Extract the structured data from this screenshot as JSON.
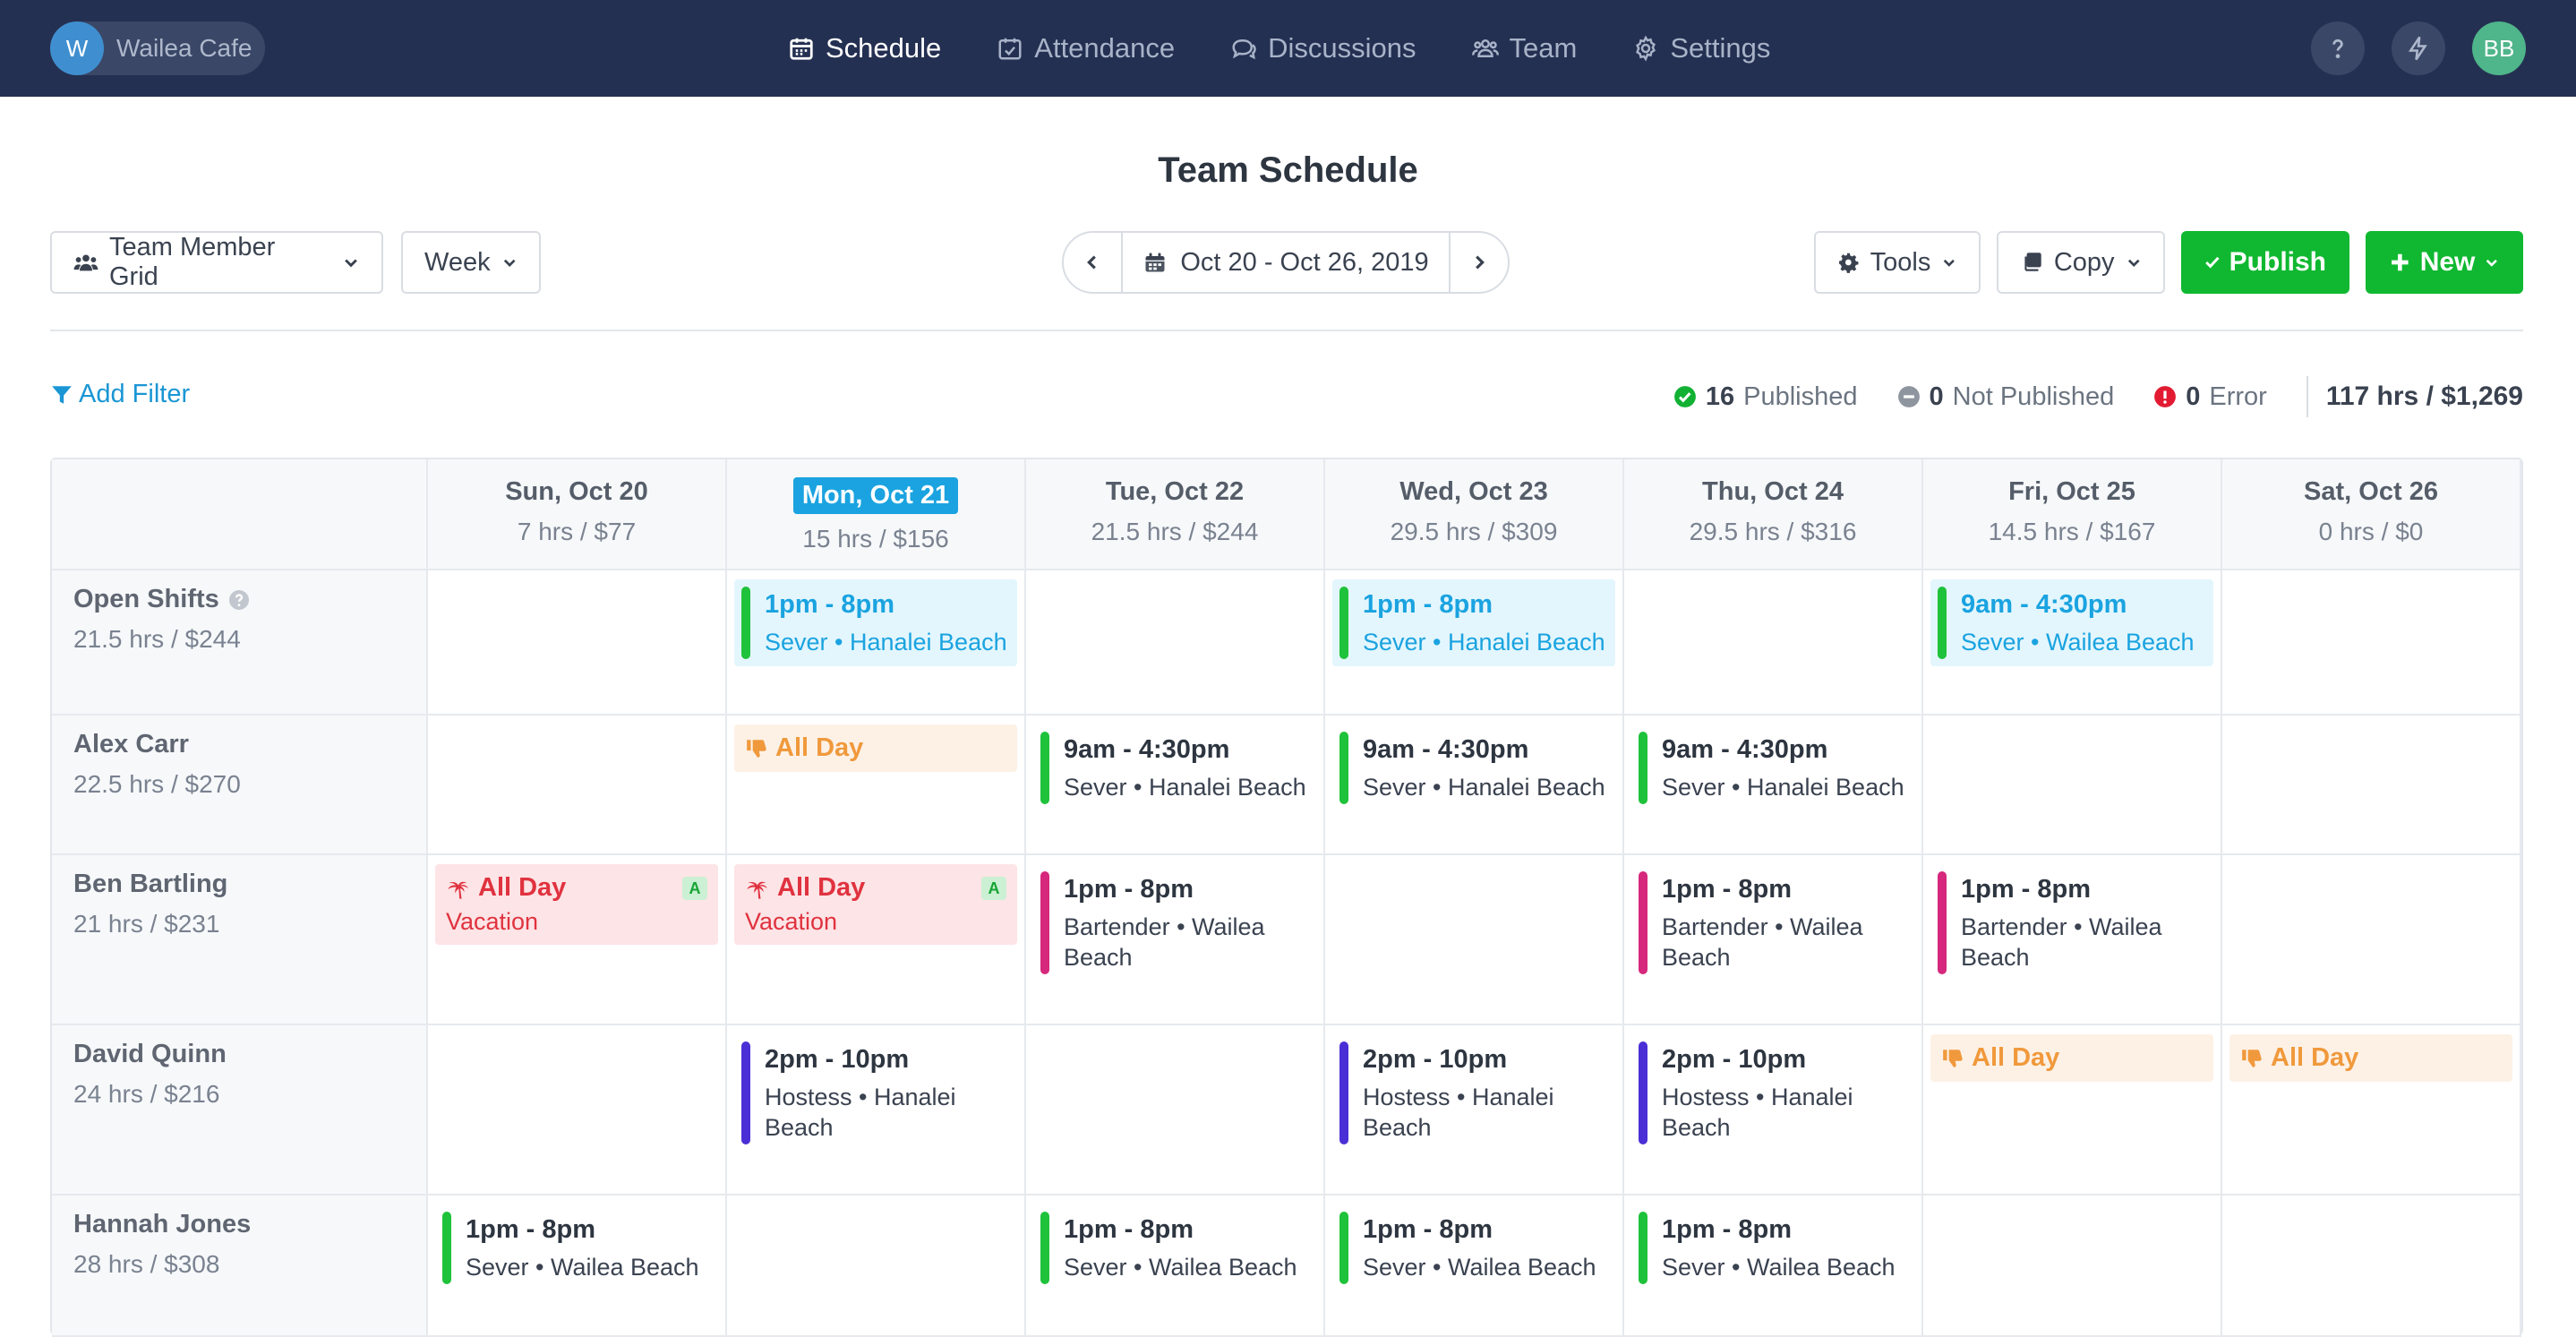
{
  "workspace": {
    "initial": "W",
    "name": "Wailea Cafe"
  },
  "nav": {
    "schedule": "Schedule",
    "attendance": "Attendance",
    "discussions": "Discussions",
    "team": "Team",
    "settings": "Settings"
  },
  "user": {
    "initials": "BB"
  },
  "page": {
    "title": "Team Schedule"
  },
  "toolbar": {
    "view": "Team Member Grid",
    "period": "Week",
    "date_range": "Oct 20 - Oct 26, 2019",
    "tools": "Tools",
    "copy": "Copy",
    "publish": "Publish",
    "new": "New"
  },
  "filter": {
    "add_filter": "Add Filter"
  },
  "status": {
    "published_count": "16",
    "published_label": "Published",
    "not_published_count": "0",
    "not_published_label": "Not Published",
    "error_count": "0",
    "error_label": "Error",
    "totals": "117 hrs / $1,269"
  },
  "colors": {
    "navbar": "#243052",
    "accent_blue": "#1aa3e0",
    "publish_green": "#0fb830",
    "server_shift": "#1fc23b",
    "bartender_shift": "#d6287c",
    "hostess_shift": "#4b2fd6",
    "unavailable": "#f0993c",
    "vacation": "#e0323f"
  },
  "days": [
    {
      "label": "Sun, Oct 20",
      "summary": "7 hrs / $77"
    },
    {
      "label": "Mon, Oct 21",
      "summary": "15 hrs / $156",
      "today": true
    },
    {
      "label": "Tue, Oct 22",
      "summary": "21.5 hrs / $244"
    },
    {
      "label": "Wed, Oct 23",
      "summary": "29.5 hrs / $309"
    },
    {
      "label": "Thu, Oct 24",
      "summary": "29.5 hrs / $316"
    },
    {
      "label": "Fri, Oct 25",
      "summary": "14.5 hrs / $167"
    },
    {
      "label": "Sat, Oct 26",
      "summary": "0 hrs / $0"
    }
  ],
  "rows": [
    {
      "name": "Open Shifts",
      "summary": "21.5 hrs / $244",
      "help_icon": "question-circle-icon"
    },
    {
      "name": "Alex Carr",
      "summary": "22.5 hrs / $270"
    },
    {
      "name": "Ben Bartling",
      "summary": "21 hrs / $231"
    },
    {
      "name": "David Quinn",
      "summary": "24 hrs / $216"
    },
    {
      "name": "Hannah Jones",
      "summary": "28 hrs / $308"
    }
  ],
  "shifts": {
    "open_mon": {
      "time": "1pm - 8pm",
      "role": "Sever • Hanalei Beach"
    },
    "open_wed": {
      "time": "1pm - 8pm",
      "role": "Sever • Hanalei Beach"
    },
    "open_fri": {
      "time": "9am - 4:30pm",
      "role": "Sever • Wailea Beach"
    },
    "alex_mon": {
      "label": "All Day"
    },
    "alex_tue": {
      "time": "9am - 4:30pm",
      "role": "Sever • Hanalei Beach"
    },
    "alex_wed": {
      "time": "9am - 4:30pm",
      "role": "Sever • Hanalei Beach"
    },
    "alex_thu": {
      "time": "9am - 4:30pm",
      "role": "Sever • Hanalei Beach"
    },
    "ben_sun": {
      "label": "All Day",
      "role": "Vacation",
      "badge": "A"
    },
    "ben_mon": {
      "label": "All Day",
      "role": "Vacation",
      "badge": "A"
    },
    "ben_tue": {
      "time": "1pm - 8pm",
      "role": "Bartender • Wailea Beach"
    },
    "ben_thu": {
      "time": "1pm - 8pm",
      "role": "Bartender • Wailea Beach"
    },
    "ben_fri": {
      "time": "1pm - 8pm",
      "role": "Bartender • Wailea Beach"
    },
    "david_mon": {
      "time": "2pm - 10pm",
      "role": "Hostess • Hanalei Beach"
    },
    "david_wed": {
      "time": "2pm - 10pm",
      "role": "Hostess • Hanalei Beach"
    },
    "david_thu": {
      "time": "2pm - 10pm",
      "role": "Hostess • Hanalei Beach"
    },
    "david_fri": {
      "label": "All Day"
    },
    "david_sat": {
      "label": "All Day"
    },
    "hannah_sun": {
      "time": "1pm - 8pm",
      "role": "Sever • Wailea Beach"
    },
    "hannah_tue": {
      "time": "1pm - 8pm",
      "role": "Sever • Wailea Beach"
    },
    "hannah_wed": {
      "time": "1pm - 8pm",
      "role": "Sever • Wailea Beach"
    },
    "hannah_thu": {
      "time": "1pm - 8pm",
      "role": "Sever • Wailea Beach"
    }
  }
}
